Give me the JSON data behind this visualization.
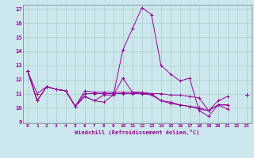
{
  "xlabel": "Windchill (Refroidissement éolien,°C)",
  "background_color": "#cce8ec",
  "grid_color": "#aacccc",
  "line_color": "#990099",
  "ylim": [
    9,
    17
  ],
  "xlim": [
    -0.5,
    23.5
  ],
  "yticks": [
    9,
    10,
    11,
    12,
    13,
    14,
    15,
    16,
    17
  ],
  "xticks": [
    0,
    1,
    2,
    3,
    4,
    5,
    6,
    7,
    8,
    9,
    10,
    11,
    12,
    13,
    14,
    15,
    16,
    17,
    18,
    19,
    20,
    21,
    22,
    23
  ],
  "hours": [
    0,
    1,
    2,
    3,
    4,
    5,
    6,
    7,
    8,
    9,
    10,
    11,
    12,
    13,
    14,
    15,
    16,
    17,
    18,
    19,
    20,
    21,
    22,
    23
  ],
  "line1": [
    12.6,
    10.5,
    11.5,
    11.3,
    11.2,
    10.1,
    10.8,
    10.5,
    10.9,
    10.9,
    14.1,
    15.6,
    17.1,
    16.6,
    13.0,
    12.4,
    11.9,
    12.1,
    9.8,
    9.4,
    10.2,
    9.9,
    null,
    10.9
  ],
  "line2": [
    12.6,
    10.5,
    11.5,
    11.3,
    11.2,
    10.1,
    11.2,
    11.1,
    11.1,
    11.1,
    11.1,
    11.1,
    11.0,
    11.0,
    11.0,
    10.9,
    10.9,
    10.8,
    10.7,
    9.8,
    10.5,
    10.8,
    null,
    10.9
  ],
  "line3": [
    12.6,
    11.0,
    11.5,
    11.3,
    11.2,
    10.1,
    10.8,
    10.5,
    10.4,
    10.9,
    12.1,
    11.1,
    11.1,
    11.0,
    10.5,
    10.3,
    10.2,
    10.1,
    10.0,
    9.8,
    10.2,
    10.2,
    null,
    10.9
  ],
  "line4": [
    12.6,
    10.5,
    11.5,
    11.3,
    11.2,
    10.1,
    11.0,
    11.0,
    11.0,
    11.0,
    11.0,
    11.0,
    11.0,
    10.9,
    10.5,
    10.4,
    10.2,
    10.1,
    9.9,
    9.8,
    10.2,
    10.2,
    null,
    10.9
  ]
}
